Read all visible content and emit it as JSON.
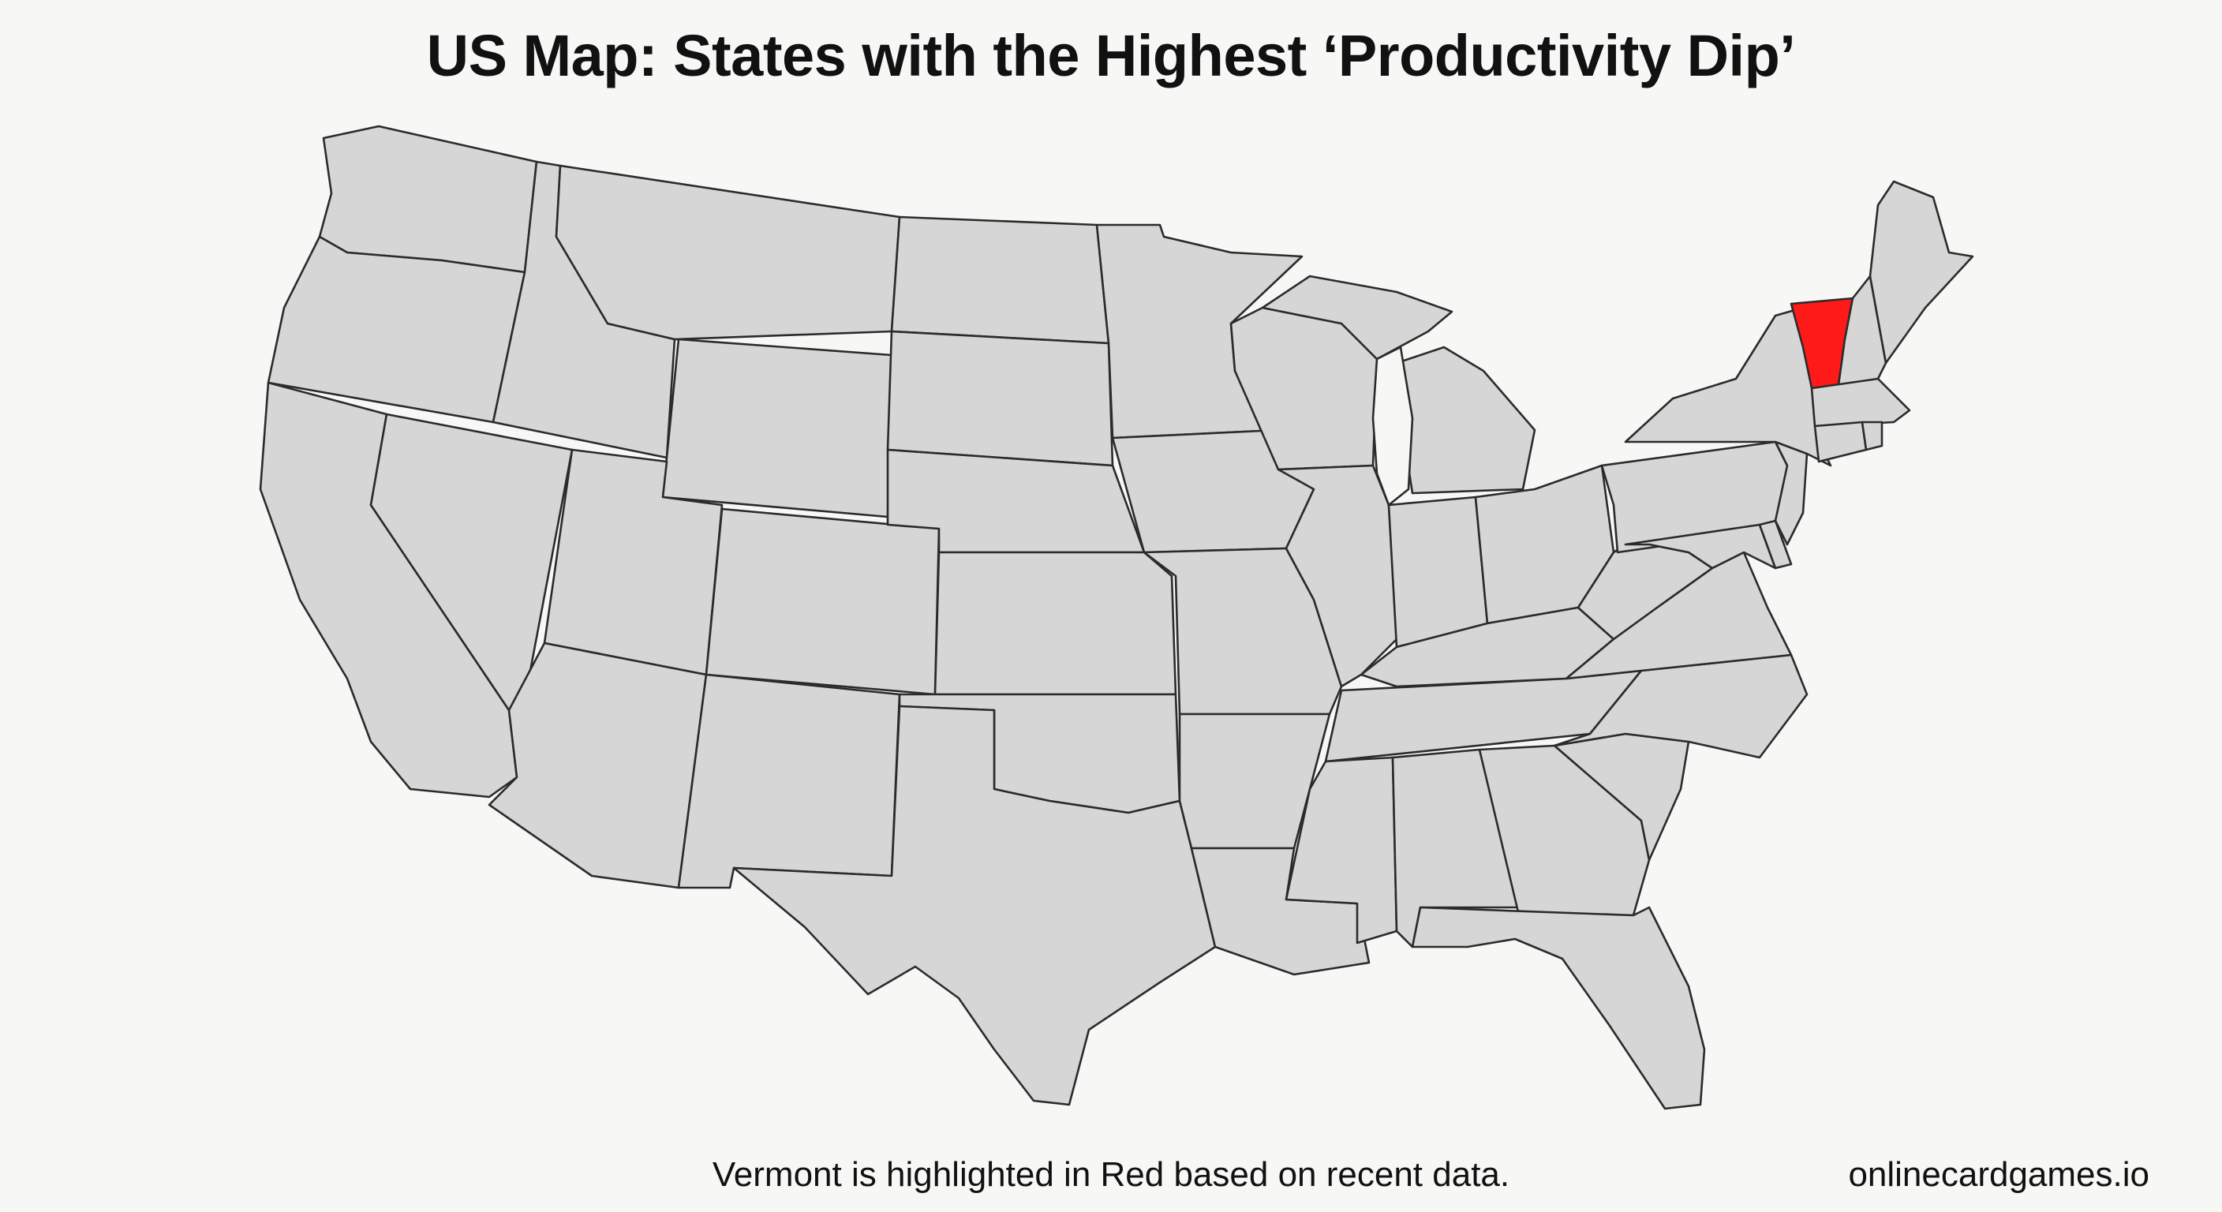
{
  "title": "US Map: States with the Highest ‘Productivity Dip’",
  "caption": "Vermont is highlighted in Red based on recent data.",
  "source": "onlinecardgames.io",
  "colors": {
    "default_fill": "#d6d6d6",
    "highlight_fill": "#ff1a1a",
    "border": "#2b2b2b",
    "background": "#f7f7f5"
  },
  "highlighted_states": [
    "Vermont"
  ]
}
